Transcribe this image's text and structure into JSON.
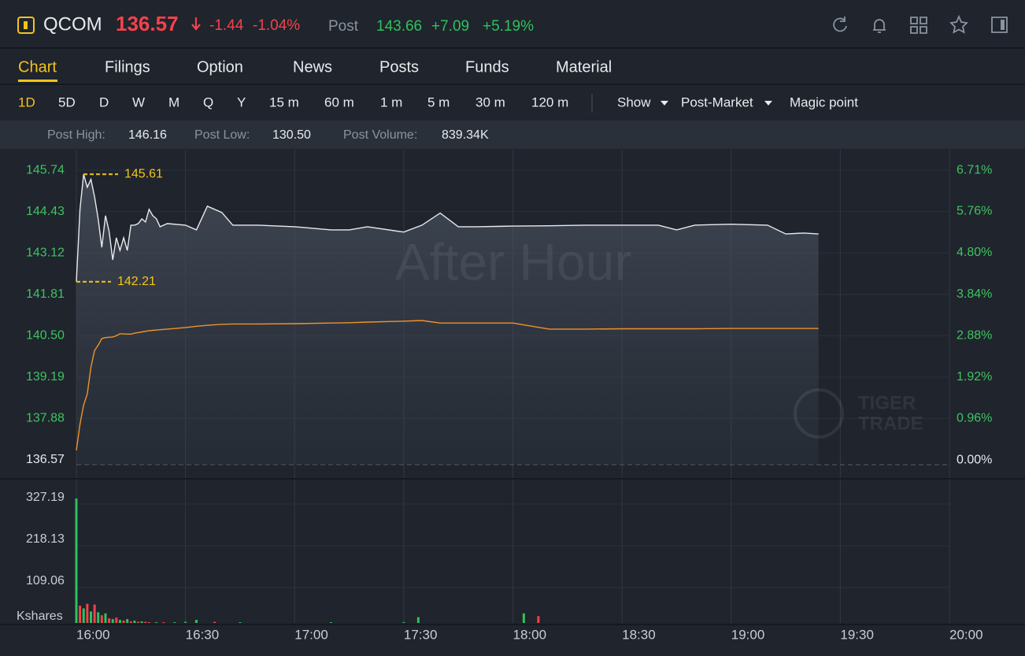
{
  "header": {
    "symbol": "QCOM",
    "price": "136.57",
    "change": "-1.44",
    "change_pct": "-1.04%",
    "post_label": "Post",
    "post_price": "143.66",
    "post_change": "+7.09",
    "post_change_pct": "+5.19%"
  },
  "tabs": [
    "Chart",
    "Filings",
    "Option",
    "News",
    "Posts",
    "Funds",
    "Material"
  ],
  "periods": [
    "1D",
    "5D",
    "D",
    "W",
    "M",
    "Q",
    "Y",
    "15 m",
    "60 m",
    "1 m",
    "5 m",
    "30 m",
    "120 m"
  ],
  "menus": [
    "Show",
    "Post-Market",
    "Magic point"
  ],
  "stats": [
    {
      "label": "Post High:",
      "value": "146.16"
    },
    {
      "label": "Post Low:",
      "value": "130.50"
    },
    {
      "label": "Post Volume:",
      "value": "839.34K"
    }
  ],
  "chart_data": {
    "type": "line",
    "watermark": "After Hour",
    "logo": [
      "TIGER",
      "TRADE"
    ],
    "xlim": [
      "16:00",
      "20:00"
    ],
    "xticks": [
      "16:00",
      "16:30",
      "17:00",
      "17:30",
      "18:00",
      "18:30",
      "19:00",
      "19:30",
      "20:00"
    ],
    "ylim": [
      136.17,
      146.39
    ],
    "yticks": [
      136.57,
      137.88,
      139.19,
      {
        "value": 140.5,
        "label": "140.50"
      },
      141.81,
      143.12,
      144.43,
      145.74
    ],
    "y2lim": [
      -0.29,
      7.19
    ],
    "y2ticks": [
      {
        "value": 0,
        "label": "0.00%"
      },
      {
        "value": 0.96,
        "label": "0.96%"
      },
      {
        "value": 1.92,
        "label": "1.92%"
      },
      {
        "value": 2.88,
        "label": "2.88%"
      },
      {
        "value": 3.84,
        "label": "3.84%"
      },
      {
        "value": 4.8,
        "label": "4.80%"
      },
      {
        "value": 5.76,
        "label": "5.76%"
      },
      {
        "value": 6.71,
        "label": "6.71%"
      }
    ],
    "markers": [
      145.61,
      142.21
    ],
    "x": [
      "16:00",
      "16:01",
      "16:02",
      "16:03",
      "16:04",
      "16:05",
      "16:06",
      "16:07",
      "16:08",
      "16:09",
      "16:10",
      "16:11",
      "16:12",
      "16:13",
      "16:14",
      "16:15",
      "16:16",
      "16:17",
      "16:18",
      "16:19",
      "16:20",
      "16:21",
      "16:22",
      "16:23",
      "16:25",
      "16:30",
      "16:33",
      "16:36",
      "16:40",
      "16:43",
      "16:50",
      "17:00",
      "17:10",
      "17:15",
      "17:20",
      "17:30",
      "17:35",
      "17:40",
      "17:45",
      "17:50",
      "18:00",
      "18:10",
      "18:20",
      "18:30",
      "18:40",
      "18:45",
      "18:50",
      "19:00",
      "19:10",
      "19:15",
      "19:20",
      "19:24"
    ],
    "series": [
      {
        "name": "Price",
        "color": "#e8eaed",
        "values": [
          142.21,
          144.5,
          145.61,
          145.2,
          145.45,
          144.9,
          144.2,
          143.3,
          144.3,
          143.8,
          142.9,
          143.6,
          143.2,
          143.6,
          143.2,
          144.0,
          144.0,
          144.05,
          144.2,
          144.1,
          144.5,
          144.3,
          144.2,
          143.95,
          144.05,
          144.0,
          143.85,
          144.6,
          144.4,
          144.0,
          144.0,
          143.95,
          143.85,
          143.85,
          143.95,
          143.78,
          144.0,
          144.38,
          143.95,
          143.95,
          143.97,
          143.98,
          144.0,
          144.0,
          144.0,
          143.85,
          144.0,
          144.03,
          144.0,
          143.72,
          143.75,
          143.72
        ]
      },
      {
        "name": "Average",
        "color": "#f0922b",
        "values": [
          136.87,
          137.7,
          138.3,
          138.66,
          139.5,
          140.03,
          140.2,
          140.41,
          140.44,
          140.45,
          140.46,
          140.5,
          140.56,
          140.56,
          140.55,
          140.55,
          140.58,
          140.6,
          140.62,
          140.64,
          140.66,
          140.67,
          140.68,
          140.69,
          140.71,
          140.76,
          140.8,
          140.83,
          140.86,
          140.87,
          140.87,
          140.88,
          140.9,
          140.91,
          140.93,
          140.96,
          140.98,
          140.9,
          140.9,
          140.9,
          140.9,
          140.71,
          140.71,
          140.72,
          140.72,
          140.72,
          140.72,
          140.73,
          140.73,
          140.73,
          140.73,
          140.73
        ]
      }
    ],
    "volume": {
      "label": "Kshares",
      "ylim": [
        0,
        360
      ],
      "yticks": [
        109.06,
        218.13,
        327.19
      ],
      "x": [
        "16:00",
        "16:01",
        "16:02",
        "16:03",
        "16:04",
        "16:05",
        "16:06",
        "16:07",
        "16:08",
        "16:09",
        "16:10",
        "16:11",
        "16:12",
        "16:13",
        "16:14",
        "16:15",
        "16:16",
        "16:17",
        "16:18",
        "16:19",
        "16:20",
        "16:22",
        "16:24",
        "16:27",
        "16:30",
        "16:33",
        "16:38",
        "16:45",
        "17:10",
        "17:30",
        "17:34",
        "18:03",
        "18:07"
      ],
      "values": [
        325,
        45,
        38,
        50,
        30,
        48,
        28,
        20,
        25,
        12,
        10,
        14,
        8,
        6,
        10,
        4,
        6,
        3,
        4,
        3,
        2,
        2,
        2,
        2,
        3,
        8,
        3,
        2,
        2,
        2,
        15,
        25,
        18
      ],
      "colors": [
        "#2fc25b",
        "#f5424b",
        "#2fc25b",
        "#f5424b",
        "#2fc25b",
        "#f5424b",
        "#2fc25b",
        "#f5424b",
        "#2fc25b",
        "#f5424b",
        "#2fc25b",
        "#f5424b",
        "#2fc25b",
        "#f5424b",
        "#2fc25b",
        "#f5424b",
        "#2fc25b",
        "#f5424b",
        "#2fc25b",
        "#f5424b",
        "#f5424b",
        "#2fc25b",
        "#f5424b",
        "#2fc25b",
        "#2fc25b",
        "#2fc25b",
        "#f5424b",
        "#2fc25b",
        "#2fc25b",
        "#2fc25b",
        "#2fc25b",
        "#2fc25b",
        "#f5424b"
      ]
    }
  }
}
